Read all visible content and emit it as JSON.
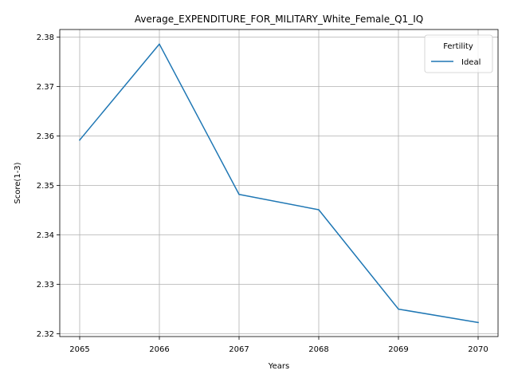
{
  "chart_data": {
    "type": "line",
    "title": "Average_EXPENDITURE_FOR_MILITARY_White_Female_Q1_IQ",
    "xlabel": "Years",
    "ylabel": "Score(1-3)",
    "x": [
      2065,
      2066,
      2067,
      2068,
      2069,
      2070
    ],
    "series": [
      {
        "name": "Ideal",
        "values": [
          2.3592,
          2.3786,
          2.3482,
          2.3451,
          2.325,
          2.3223
        ],
        "color": "#1f77b4"
      }
    ],
    "xlim": [
      2064.75,
      2070.25
    ],
    "ylim": [
      2.31945,
      2.38155
    ],
    "xticks": [
      "2065",
      "2066",
      "2067",
      "2068",
      "2069",
      "2070"
    ],
    "yticks": [
      "2.32",
      "2.33",
      "2.34",
      "2.35",
      "2.36",
      "2.37",
      "2.38"
    ],
    "grid": true,
    "legend": {
      "title": "Fertility",
      "position": "top-right"
    }
  }
}
